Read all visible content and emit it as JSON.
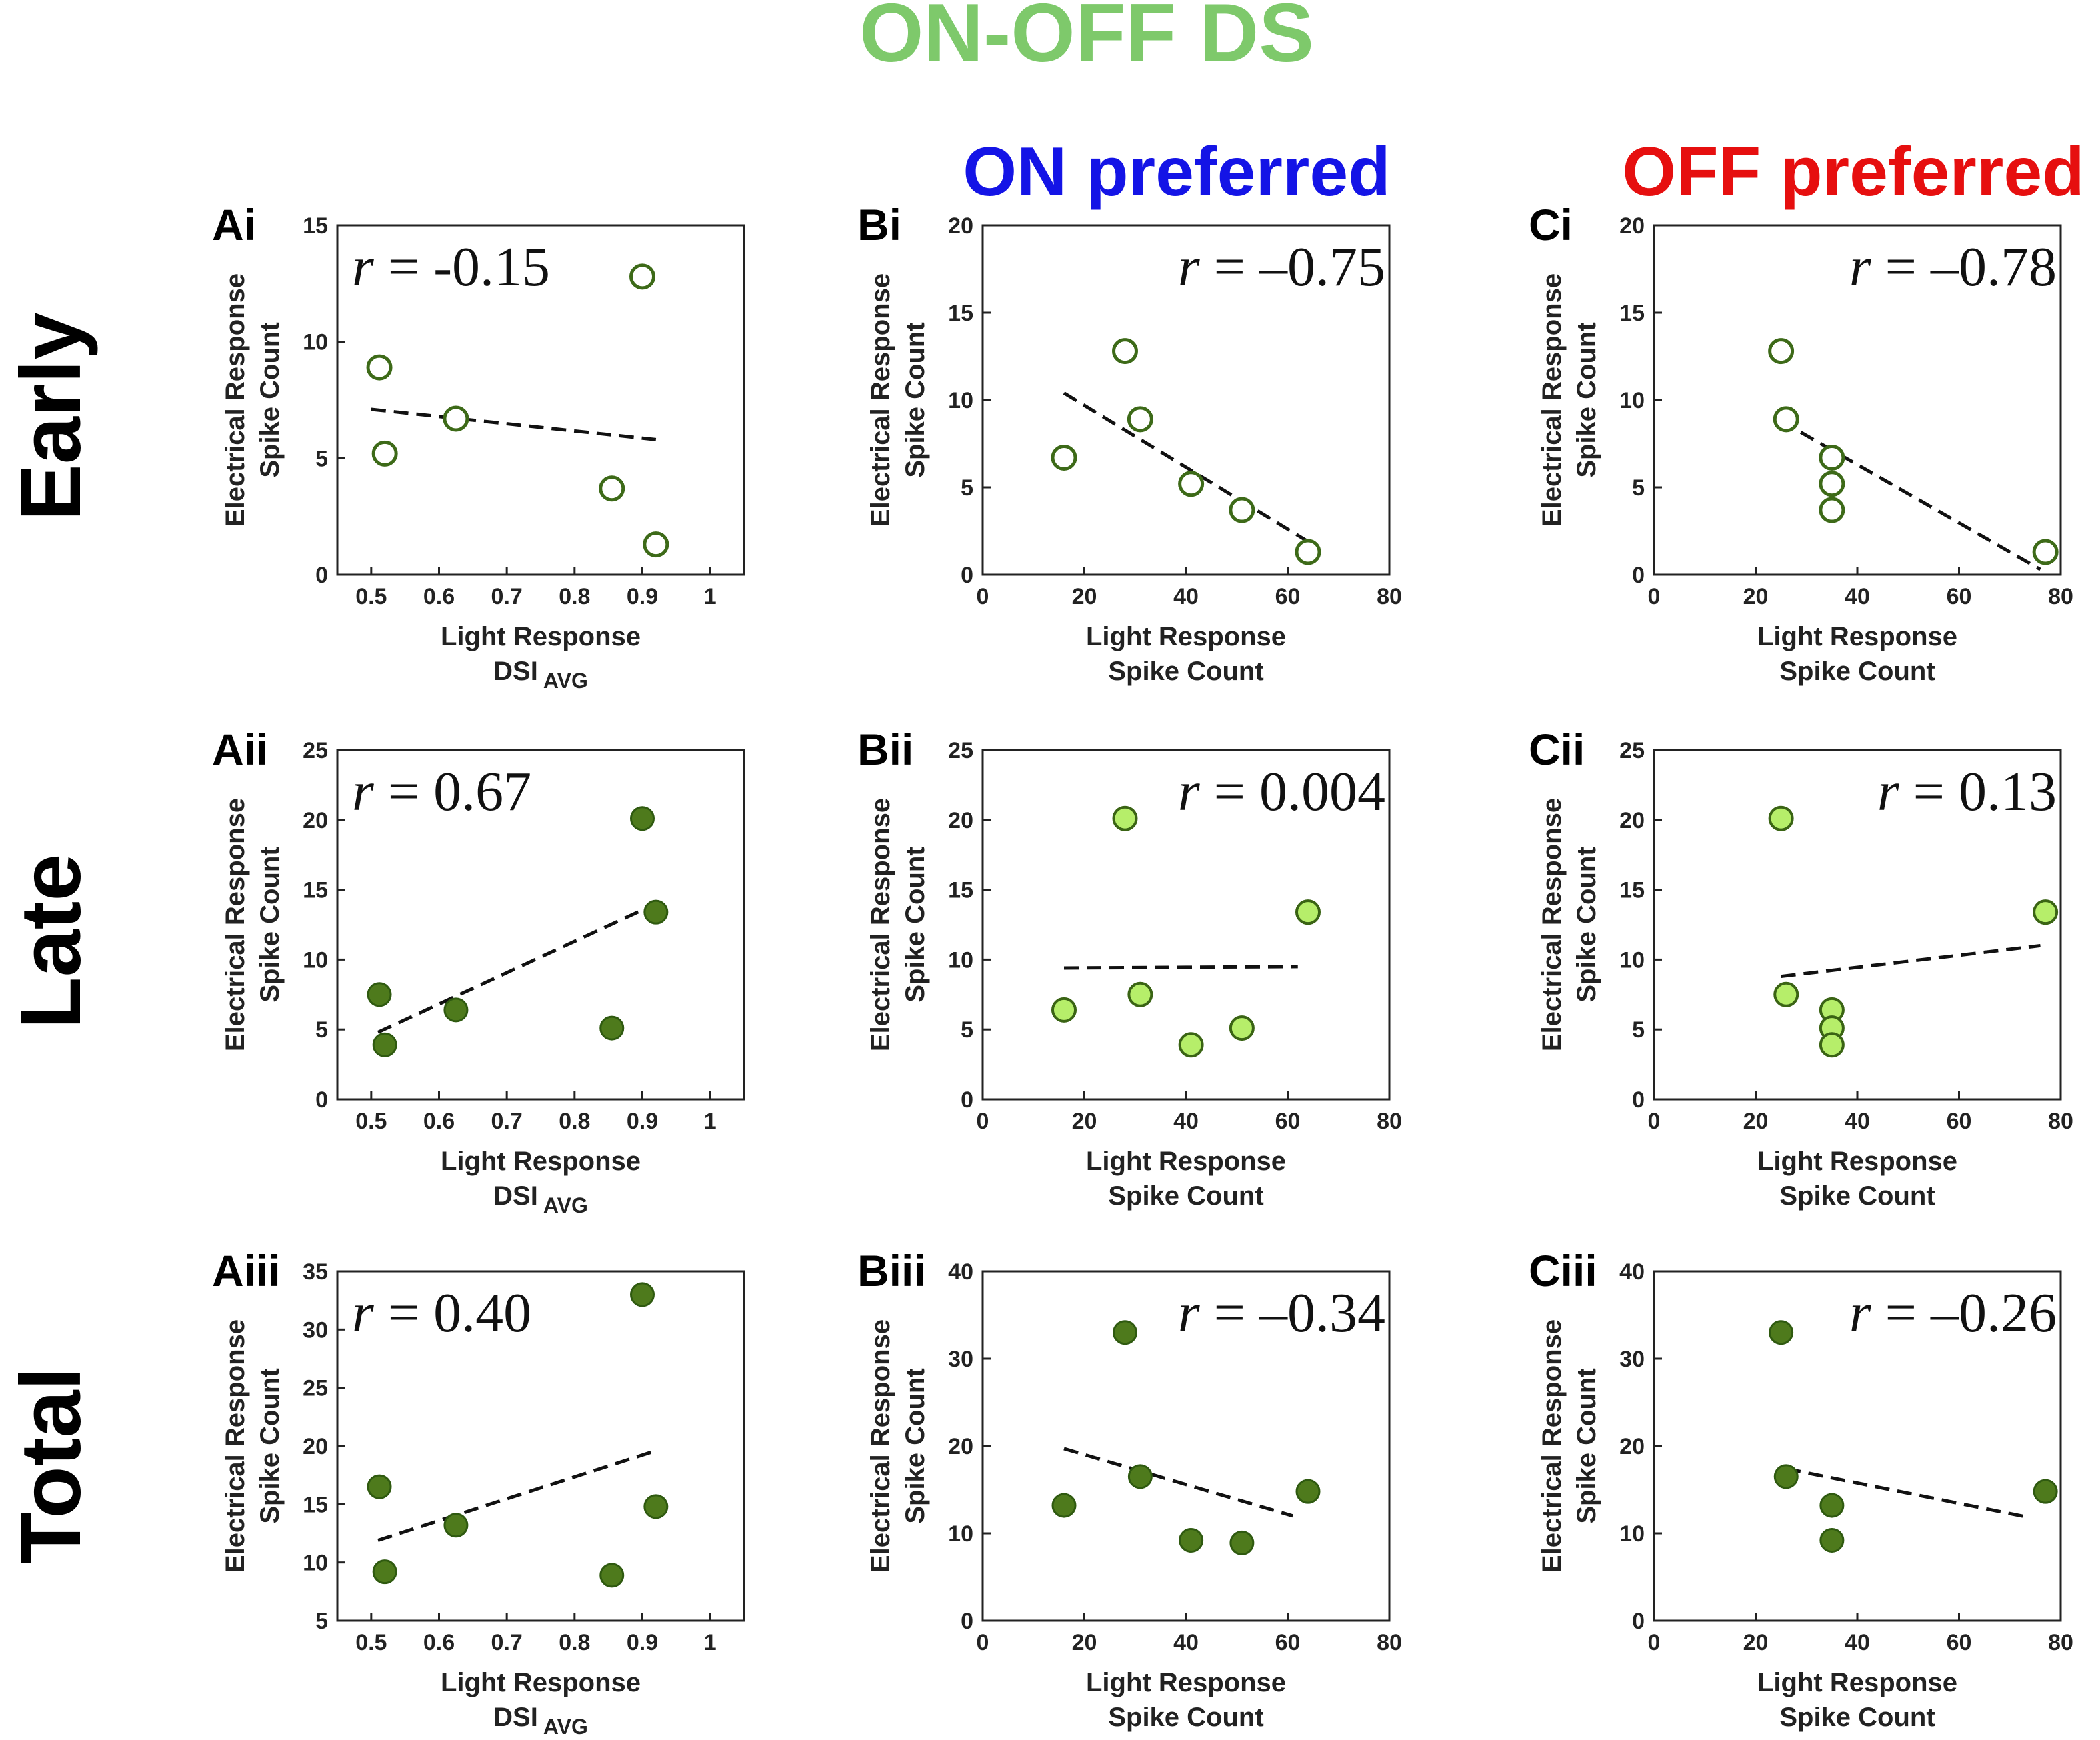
{
  "figure": {
    "title": "ON-OFF DS",
    "title_color": "#7ec96b",
    "column_titles": [
      {
        "text": "ON preferred",
        "color": "#1414e6"
      },
      {
        "text": "OFF preferred",
        "color": "#e60f0f"
      }
    ],
    "row_titles": [
      "Early",
      "Late",
      "Total"
    ]
  },
  "colors": {
    "dark_green": "#4e7a1c",
    "dark_green_edge": "#2f5a10",
    "light_green": "#b6ee6a",
    "light_green_edge": "#3a6414",
    "open_edge": "#3d6a18"
  },
  "chart_data": [
    {
      "id": "Ai",
      "label": "Ai",
      "type": "scatter",
      "xlabel": "Light Response",
      "xlabel2": "DSI",
      "xlabel2_sub": "AVG",
      "ylabel": "Electrical Response",
      "ylabel2": "Spike Count",
      "xlim": [
        0.45,
        1.05
      ],
      "ylim": [
        0,
        15
      ],
      "xticks": [
        0.5,
        0.6,
        0.7,
        0.8,
        0.9,
        1
      ],
      "xtick_labels": [
        "0.5",
        "0.6",
        "0.7",
        "0.8",
        "0.9",
        "1"
      ],
      "yticks": [
        0,
        5,
        10,
        15
      ],
      "ytick_labels": [
        "0",
        "5",
        "10",
        "15"
      ],
      "r": "r = -0.15",
      "r_align": "left",
      "marker": "open",
      "points": [
        [
          0.512,
          8.9
        ],
        [
          0.52,
          5.2
        ],
        [
          0.625,
          6.7
        ],
        [
          0.855,
          3.7
        ],
        [
          0.9,
          12.8
        ],
        [
          0.92,
          1.3
        ]
      ],
      "fit": [
        [
          0.5,
          7.1
        ],
        [
          0.92,
          5.8
        ]
      ]
    },
    {
      "id": "Bi",
      "label": "Bi",
      "type": "scatter",
      "xlabel": "Light Response",
      "xlabel2": "Spike Count",
      "xlabel2_sub": "",
      "ylabel": "Electrical Response",
      "ylabel2": "Spike Count",
      "xlim": [
        0,
        80
      ],
      "ylim": [
        0,
        20
      ],
      "xticks": [
        0,
        20,
        40,
        60,
        80
      ],
      "xtick_labels": [
        "0",
        "20",
        "40",
        "60",
        "80"
      ],
      "yticks": [
        0,
        5,
        10,
        15,
        20
      ],
      "ytick_labels": [
        "0",
        "5",
        "10",
        "15",
        "20"
      ],
      "r": "r = –0.75",
      "r_align": "right",
      "marker": "open",
      "points": [
        [
          16,
          6.7
        ],
        [
          28,
          12.8
        ],
        [
          31,
          8.9
        ],
        [
          41,
          5.2
        ],
        [
          51,
          3.7
        ],
        [
          64,
          1.3
        ]
      ],
      "fit": [
        [
          16,
          10.4
        ],
        [
          64,
          1.9
        ]
      ]
    },
    {
      "id": "Ci",
      "label": "Ci",
      "type": "scatter",
      "xlabel": "Light Response",
      "xlabel2": "Spike Count",
      "xlabel2_sub": "",
      "ylabel": "Electrical Response",
      "ylabel2": "Spike Count",
      "xlim": [
        0,
        80
      ],
      "ylim": [
        0,
        20
      ],
      "xticks": [
        0,
        20,
        40,
        60,
        80
      ],
      "xtick_labels": [
        "0",
        "20",
        "40",
        "60",
        "80"
      ],
      "yticks": [
        0,
        5,
        10,
        15,
        20
      ],
      "ytick_labels": [
        "0",
        "5",
        "10",
        "15",
        "20"
      ],
      "r": "r = –0.78",
      "r_align": "right",
      "marker": "open",
      "points": [
        [
          25,
          12.8
        ],
        [
          26,
          8.9
        ],
        [
          35,
          6.7
        ],
        [
          35,
          5.2
        ],
        [
          35,
          3.7
        ],
        [
          77,
          1.3
        ]
      ],
      "fit": [
        [
          25,
          8.8
        ],
        [
          76,
          0.3
        ]
      ]
    },
    {
      "id": "Aii",
      "label": "Aii",
      "type": "scatter",
      "xlabel": "Light Response",
      "xlabel2": "DSI",
      "xlabel2_sub": "AVG",
      "ylabel": "Electrical Response",
      "ylabel2": "Spike Count",
      "xlim": [
        0.45,
        1.05
      ],
      "ylim": [
        0,
        25
      ],
      "xticks": [
        0.5,
        0.6,
        0.7,
        0.8,
        0.9,
        1
      ],
      "xtick_labels": [
        "0.5",
        "0.6",
        "0.7",
        "0.8",
        "0.9",
        "1"
      ],
      "yticks": [
        0,
        5,
        10,
        15,
        20,
        25
      ],
      "ytick_labels": [
        "0",
        "5",
        "10",
        "15",
        "20",
        "25"
      ],
      "r": "r = 0.67",
      "r_align": "left",
      "marker": "dark",
      "points": [
        [
          0.512,
          7.5
        ],
        [
          0.52,
          3.9
        ],
        [
          0.625,
          6.4
        ],
        [
          0.855,
          5.1
        ],
        [
          0.9,
          20.1
        ],
        [
          0.92,
          13.4
        ]
      ],
      "fit": [
        [
          0.51,
          4.8
        ],
        [
          0.92,
          14.0
        ]
      ]
    },
    {
      "id": "Bii",
      "label": "Bii",
      "type": "scatter",
      "xlabel": "Light Response",
      "xlabel2": "Spike Count",
      "xlabel2_sub": "",
      "ylabel": "Electrical Response",
      "ylabel2": "Spike Count",
      "xlim": [
        0,
        80
      ],
      "ylim": [
        0,
        25
      ],
      "xticks": [
        0,
        20,
        40,
        60,
        80
      ],
      "xtick_labels": [
        "0",
        "20",
        "40",
        "60",
        "80"
      ],
      "yticks": [
        0,
        5,
        10,
        15,
        20,
        25
      ],
      "ytick_labels": [
        "0",
        "5",
        "10",
        "15",
        "20",
        "25"
      ],
      "r": "r = 0.004",
      "r_align": "right",
      "marker": "light",
      "points": [
        [
          16,
          6.4
        ],
        [
          28,
          20.1
        ],
        [
          31,
          7.5
        ],
        [
          41,
          3.9
        ],
        [
          51,
          5.1
        ],
        [
          64,
          13.4
        ]
      ],
      "fit": [
        [
          16,
          9.4
        ],
        [
          62,
          9.5
        ]
      ]
    },
    {
      "id": "Cii",
      "label": "Cii",
      "type": "scatter",
      "xlabel": "Light Response",
      "xlabel2": "Spike Count",
      "xlabel2_sub": "",
      "ylabel": "Electrical Response",
      "ylabel2": "Spike Count",
      "xlim": [
        0,
        80
      ],
      "ylim": [
        0,
        25
      ],
      "xticks": [
        0,
        20,
        40,
        60,
        80
      ],
      "xtick_labels": [
        "0",
        "20",
        "40",
        "60",
        "80"
      ],
      "yticks": [
        0,
        5,
        10,
        15,
        20,
        25
      ],
      "ytick_labels": [
        "0",
        "5",
        "10",
        "15",
        "20",
        "25"
      ],
      "r": "r = 0.13",
      "r_align": "right",
      "marker": "light",
      "points": [
        [
          25,
          20.1
        ],
        [
          26,
          7.5
        ],
        [
          35,
          6.4
        ],
        [
          35,
          5.1
        ],
        [
          35,
          3.9
        ],
        [
          77,
          13.4
        ]
      ],
      "fit": [
        [
          25,
          8.8
        ],
        [
          76,
          11.0
        ]
      ]
    },
    {
      "id": "Aiii",
      "label": "Aiii",
      "type": "scatter",
      "xlabel": "Light Response",
      "xlabel2": "DSI",
      "xlabel2_sub": "AVG",
      "ylabel": "Electrical Response",
      "ylabel2": "Spike Count",
      "xlim": [
        0.45,
        1.05
      ],
      "ylim": [
        5,
        35
      ],
      "xticks": [
        0.5,
        0.6,
        0.7,
        0.8,
        0.9,
        1
      ],
      "xtick_labels": [
        "0.5",
        "0.6",
        "0.7",
        "0.8",
        "0.9",
        "1"
      ],
      "yticks": [
        5,
        10,
        15,
        20,
        25,
        30,
        35
      ],
      "ytick_labels": [
        "5",
        "10",
        "15",
        "20",
        "25",
        "30",
        "35"
      ],
      "r": "r = 0.40",
      "r_align": "left",
      "marker": "dark",
      "points": [
        [
          0.512,
          16.5
        ],
        [
          0.52,
          9.2
        ],
        [
          0.625,
          13.2
        ],
        [
          0.855,
          8.9
        ],
        [
          0.9,
          33.0
        ],
        [
          0.92,
          14.8
        ]
      ],
      "fit": [
        [
          0.51,
          11.9
        ],
        [
          0.92,
          19.6
        ]
      ]
    },
    {
      "id": "Biii",
      "label": "Biii",
      "type": "scatter",
      "xlabel": "Light Response",
      "xlabel2": "Spike Count",
      "xlabel2_sub": "",
      "ylabel": "Electrical Response",
      "ylabel2": "Spike Count",
      "xlim": [
        0,
        80
      ],
      "ylim": [
        0,
        40
      ],
      "xticks": [
        0,
        20,
        40,
        60,
        80
      ],
      "xtick_labels": [
        "0",
        "20",
        "40",
        "60",
        "80"
      ],
      "yticks": [
        0,
        10,
        20,
        30,
        40
      ],
      "ytick_labels": [
        "0",
        "10",
        "20",
        "30",
        "40"
      ],
      "r": "r = –0.34",
      "r_align": "right",
      "marker": "dark",
      "points": [
        [
          16,
          13.2
        ],
        [
          28,
          33.0
        ],
        [
          31,
          16.5
        ],
        [
          41,
          9.2
        ],
        [
          51,
          8.9
        ],
        [
          64,
          14.8
        ]
      ],
      "fit": [
        [
          16,
          19.7
        ],
        [
          61,
          12.0
        ]
      ]
    },
    {
      "id": "Ciii",
      "label": "Ciii",
      "type": "scatter",
      "xlabel": "Light Response",
      "xlabel2": "Spike Count",
      "xlabel2_sub": "",
      "ylabel": "Electrical Response",
      "ylabel2": "Spike Count",
      "xlim": [
        0,
        80
      ],
      "ylim": [
        0,
        40
      ],
      "xticks": [
        0,
        20,
        40,
        60,
        80
      ],
      "xtick_labels": [
        "0",
        "20",
        "40",
        "60",
        "80"
      ],
      "yticks": [
        0,
        10,
        20,
        30,
        40
      ],
      "ytick_labels": [
        "0",
        "10",
        "20",
        "30",
        "40"
      ],
      "r": "r = –0.26",
      "r_align": "right",
      "marker": "dark",
      "points": [
        [
          25,
          33.0
        ],
        [
          26,
          16.5
        ],
        [
          35,
          13.2
        ],
        [
          35,
          9.2
        ],
        [
          77,
          14.8
        ]
      ],
      "fit": [
        [
          26,
          17.4
        ],
        [
          74,
          11.8
        ]
      ]
    }
  ]
}
